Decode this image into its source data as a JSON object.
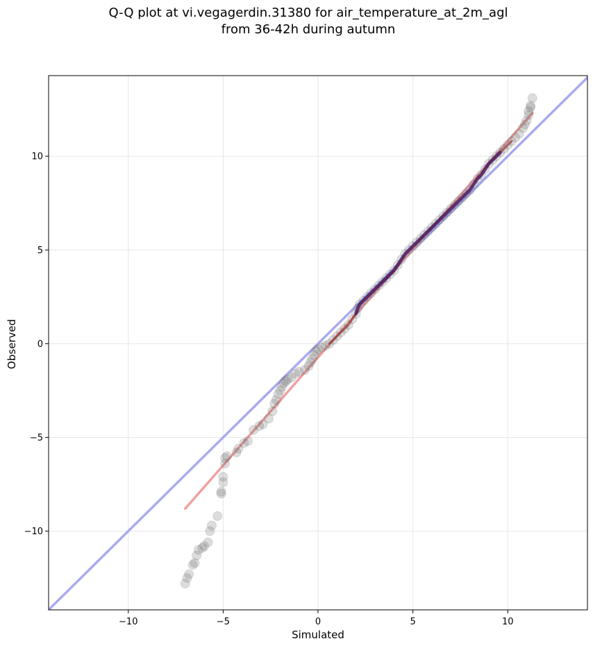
{
  "chart_data": {
    "type": "scatter",
    "title": [
      "Q-Q plot at vi.vegagerdin.31380 for air_temperature_at_2m_agl",
      "from 36-42h during autumn"
    ],
    "xlabel": "Simulated",
    "ylabel": "Observed",
    "xlim": [
      -14.2,
      14.2
    ],
    "ylim": [
      -14.2,
      14.3
    ],
    "xticks": [
      -10,
      -5,
      0,
      5,
      10
    ],
    "yticks": [
      -10,
      -5,
      0,
      5,
      10
    ],
    "xtick_labels": [
      "−10",
      "−5",
      "0",
      "5",
      "10"
    ],
    "ytick_labels": [
      "−10",
      "−5",
      "0",
      "5",
      "10"
    ],
    "grid": true,
    "colors": {
      "points": "#666666",
      "identity_line": "#aaaaee",
      "fit_line": "#f0a0a0",
      "dense_overlay_blue": "#1e1e9a",
      "dense_overlay_red": "#8b1010"
    },
    "reference_lines": [
      {
        "kind": "identity",
        "x": [
          -14.2,
          14.2
        ],
        "y": [
          -14.2,
          14.2
        ]
      },
      {
        "kind": "fit",
        "x": [
          -7.0,
          11.3
        ],
        "y": [
          -8.8,
          12.3
        ]
      }
    ],
    "points": [
      [
        -7.0,
        -12.8
      ],
      [
        -6.9,
        -12.5
      ],
      [
        -6.8,
        -12.3
      ],
      [
        -6.6,
        -11.8
      ],
      [
        -6.5,
        -11.7
      ],
      [
        -6.4,
        -11.3
      ],
      [
        -6.3,
        -11.0
      ],
      [
        -6.1,
        -10.9
      ],
      [
        -6.0,
        -10.8
      ],
      [
        -5.8,
        -10.6
      ],
      [
        -5.7,
        -10.0
      ],
      [
        -5.6,
        -9.7
      ],
      [
        -5.3,
        -9.2
      ],
      [
        -5.1,
        -8.0
      ],
      [
        -5.1,
        -7.9
      ],
      [
        -5.0,
        -7.4
      ],
      [
        -5.0,
        -7.1
      ],
      [
        -4.9,
        -6.4
      ],
      [
        -4.9,
        -6.1
      ],
      [
        -4.8,
        -6.0
      ],
      [
        -4.3,
        -5.8
      ],
      [
        -4.2,
        -5.6
      ],
      [
        -3.9,
        -5.3
      ],
      [
        -3.7,
        -5.2
      ],
      [
        -3.4,
        -4.6
      ],
      [
        -3.1,
        -4.4
      ],
      [
        -2.9,
        -4.3
      ],
      [
        -2.6,
        -4.0
      ],
      [
        -2.4,
        -3.6
      ],
      [
        -2.3,
        -3.2
      ],
      [
        -2.2,
        -3.0
      ],
      [
        -2.1,
        -2.7
      ],
      [
        -2.0,
        -2.5
      ],
      [
        -1.9,
        -2.3
      ],
      [
        -1.8,
        -2.1
      ],
      [
        -1.7,
        -2.0
      ],
      [
        -1.6,
        -1.9
      ],
      [
        -1.4,
        -1.8
      ],
      [
        -1.2,
        -1.6
      ],
      [
        -1.0,
        -1.5
      ],
      [
        -0.7,
        -1.4
      ],
      [
        -0.5,
        -1.2
      ],
      [
        -0.4,
        -1.0
      ],
      [
        -0.3,
        -0.8
      ],
      [
        -0.2,
        -0.6
      ],
      [
        -0.1,
        -0.4
      ],
      [
        0.0,
        -0.3
      ],
      [
        0.2,
        -0.2
      ],
      [
        0.4,
        -0.1
      ],
      [
        0.6,
        0.0
      ],
      [
        0.8,
        0.2
      ],
      [
        1.0,
        0.4
      ],
      [
        1.2,
        0.6
      ],
      [
        1.4,
        0.8
      ],
      [
        1.6,
        1.0
      ],
      [
        1.8,
        1.3
      ],
      [
        2.0,
        1.6
      ],
      [
        2.1,
        1.9
      ],
      [
        2.2,
        2.1
      ],
      [
        2.4,
        2.3
      ],
      [
        2.6,
        2.5
      ],
      [
        2.8,
        2.7
      ],
      [
        3.0,
        2.9
      ],
      [
        3.2,
        3.1
      ],
      [
        3.4,
        3.3
      ],
      [
        3.6,
        3.5
      ],
      [
        3.8,
        3.7
      ],
      [
        4.0,
        3.9
      ],
      [
        4.2,
        4.2
      ],
      [
        4.4,
        4.5
      ],
      [
        4.6,
        4.8
      ],
      [
        4.8,
        5.0
      ],
      [
        5.0,
        5.2
      ],
      [
        5.2,
        5.4
      ],
      [
        5.4,
        5.6
      ],
      [
        5.6,
        5.8
      ],
      [
        5.8,
        6.0
      ],
      [
        6.0,
        6.2
      ],
      [
        6.2,
        6.4
      ],
      [
        6.4,
        6.6
      ],
      [
        6.6,
        6.8
      ],
      [
        6.8,
        7.0
      ],
      [
        7.0,
        7.2
      ],
      [
        7.2,
        7.4
      ],
      [
        7.4,
        7.6
      ],
      [
        7.6,
        7.8
      ],
      [
        7.8,
        8.0
      ],
      [
        8.0,
        8.2
      ],
      [
        8.2,
        8.5
      ],
      [
        8.4,
        8.8
      ],
      [
        8.6,
        9.0
      ],
      [
        8.8,
        9.3
      ],
      [
        9.0,
        9.6
      ],
      [
        9.2,
        9.8
      ],
      [
        9.4,
        10.0
      ],
      [
        9.6,
        10.2
      ],
      [
        9.8,
        10.4
      ],
      [
        10.0,
        10.6
      ],
      [
        10.2,
        10.8
      ],
      [
        10.4,
        11.0
      ],
      [
        10.6,
        11.2
      ],
      [
        10.8,
        11.5
      ],
      [
        10.9,
        11.7
      ],
      [
        11.0,
        11.9
      ],
      [
        11.1,
        12.2
      ],
      [
        11.1,
        12.4
      ],
      [
        11.2,
        12.6
      ],
      [
        11.2,
        12.7
      ],
      [
        11.3,
        13.1
      ]
    ]
  }
}
